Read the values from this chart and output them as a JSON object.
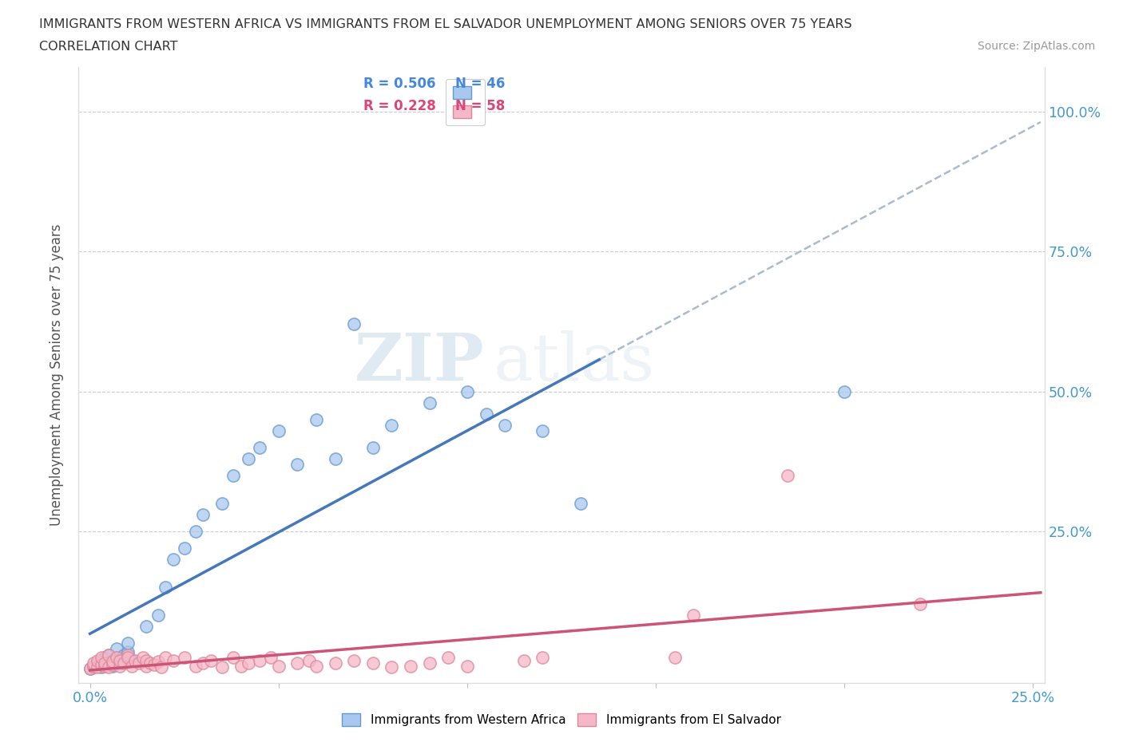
{
  "title_line1": "IMMIGRANTS FROM WESTERN AFRICA VS IMMIGRANTS FROM EL SALVADOR UNEMPLOYMENT AMONG SENIORS OVER 75 YEARS",
  "title_line2": "CORRELATION CHART",
  "source_text": "Source: ZipAtlas.com",
  "ylabel": "Unemployment Among Seniors over 75 years",
  "legend_label1": "Immigrants from Western Africa",
  "legend_label2": "Immigrants from El Salvador",
  "R1": 0.506,
  "N1": 46,
  "R2": 0.228,
  "N2": 58,
  "color1": "#a8c8f0",
  "color1_edge": "#6699cc",
  "color1_line": "#4477bb",
  "color2": "#f5b8c8",
  "color2_edge": "#dd8899",
  "color2_line": "#cc5577",
  "color_blue_text": "#4488dd",
  "color_pink_text": "#dd4477",
  "tick_color": "#4499cc",
  "watermark_zip": "ZIP",
  "watermark_atlas": "atlas"
}
